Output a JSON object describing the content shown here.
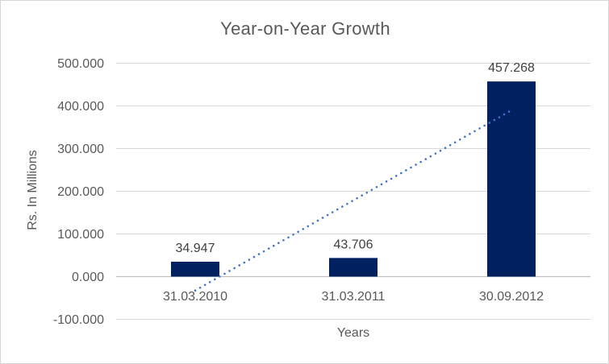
{
  "chart_data": {
    "type": "bar",
    "title": "Year-on-Year Growth",
    "xlabel": "Years",
    "ylabel": "Rs. In Millions",
    "categories": [
      "31.03.2010",
      "31.03.2011",
      "30.09.2012"
    ],
    "values": [
      34.947,
      43.706,
      457.268
    ],
    "data_labels": [
      "34.947",
      "43.706",
      "457.268"
    ],
    "ylim": [
      -100,
      500
    ],
    "ytick_values": [
      500,
      400,
      300,
      200,
      100,
      0,
      -100
    ],
    "ytick_labels": [
      "500.000",
      "400.000",
      "300.000",
      "200.000",
      "100.000",
      "0.000",
      "-100.000"
    ],
    "grid": true,
    "legend_position": "none",
    "trendline": {
      "style": "dotted",
      "start_value": -32.5,
      "end_value": 389.8,
      "color": "#4472c4"
    },
    "colors": {
      "bar": "#002060",
      "trendline": "#4472c4",
      "gridline": "#d9d9d9",
      "axis_line": "#bfbfbf",
      "tick_text": "#595959",
      "data_label_text": "#404040",
      "title_text": "#595959",
      "border": "#d6d6d6",
      "background": "#ffffff"
    }
  }
}
